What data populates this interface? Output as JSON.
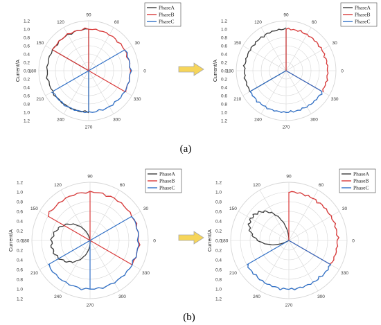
{
  "colors": {
    "PhaseA": "#3a3a3a",
    "PhaseB": "#d93838",
    "PhaseC": "#2f6fc6",
    "arrow_fill": "#f6d55a",
    "arrow_stroke": "#a8a8a8",
    "grid": "#d6d6d6"
  },
  "captions": [
    "(a)",
    "(b)"
  ],
  "chart_data": [
    {
      "type": "polar-line",
      "panel": "a-before",
      "ylabel": "Current/A",
      "angle_ticks": [
        "0",
        "30",
        "60",
        "90",
        "120",
        "150",
        "180",
        "210",
        "240",
        "270",
        "300",
        "330"
      ],
      "radial_ticks": [
        "0.0",
        "0.2",
        "0.4",
        "0.6",
        "0.8",
        "1.0",
        "1.2"
      ],
      "rlim": [
        0,
        1.2
      ],
      "legend": [
        "PhaseA",
        "PhaseB",
        "PhaseC"
      ],
      "legend_position": "top-right",
      "series": [
        {
          "name": "PhaseA",
          "theta_range": [
            90,
            270
          ],
          "r": 1.0,
          "radial_lines_deg": [
            90,
            150,
            270
          ]
        },
        {
          "name": "PhaseB",
          "theta_range": [
            -30,
            150
          ],
          "r": 1.0,
          "radial_lines_deg": [
            -30,
            90,
            150
          ]
        },
        {
          "name": "PhaseC",
          "theta_range": [
            210,
            390
          ],
          "r": 1.0,
          "radial_lines_deg": [
            30,
            210,
            270
          ]
        }
      ]
    },
    {
      "type": "polar-line",
      "panel": "a-after",
      "ylabel": "Current/A",
      "angle_ticks": [
        "0",
        "30",
        "60",
        "90",
        "120",
        "150",
        "180",
        "210",
        "240",
        "270",
        "300",
        "330"
      ],
      "radial_ticks": [
        "0.0",
        "0.2",
        "0.4",
        "0.6",
        "0.8",
        "1.0",
        "1.2"
      ],
      "rlim": [
        0,
        1.2
      ],
      "legend": [
        "PhaseA",
        "PhaseB",
        "PhaseC"
      ],
      "legend_position": "top-right",
      "series": [
        {
          "name": "PhaseA",
          "theta_range": [
            90,
            210
          ],
          "r": 1.0,
          "radial_lines_deg": [
            90,
            210
          ]
        },
        {
          "name": "PhaseB",
          "theta_range": [
            -30,
            90
          ],
          "r": 1.0,
          "radial_lines_deg": [
            90,
            -30
          ]
        },
        {
          "name": "PhaseC",
          "theta_range": [
            210,
            330
          ],
          "r": 1.0,
          "radial_lines_deg": [
            210,
            -30
          ]
        }
      ]
    },
    {
      "type": "polar-line",
      "panel": "b-before",
      "ylabel": "Current/A",
      "angle_ticks": [
        "0",
        "30",
        "60",
        "90",
        "120",
        "150",
        "180",
        "210",
        "240",
        "270",
        "300",
        "330"
      ],
      "radial_ticks": [
        "0.0",
        "0.2",
        "0.4",
        "0.6",
        "0.8",
        "1.0",
        "1.2"
      ],
      "rlim": [
        0,
        1.2
      ],
      "legend": [
        "PhaseA",
        "PhaseB",
        "PhaseC"
      ],
      "legend_position": "top-right",
      "series": [
        {
          "name": "PhaseA",
          "shape": "loop",
          "theta_range": [
            100,
            275
          ],
          "peak_r": 0.8
        },
        {
          "name": "PhaseB",
          "theta_range": [
            -30,
            150
          ],
          "r": 1.0,
          "radial_lines_deg": [
            -30,
            90,
            150
          ]
        },
        {
          "name": "PhaseC",
          "theta_range": [
            210,
            390
          ],
          "r": 1.0,
          "radial_lines_deg": [
            30,
            210,
            270
          ]
        }
      ]
    },
    {
      "type": "polar-line",
      "panel": "b-after",
      "ylabel": "Current/A",
      "angle_ticks": [
        "0",
        "30",
        "60",
        "90",
        "120",
        "150",
        "180",
        "210",
        "240",
        "270",
        "300",
        "330"
      ],
      "radial_ticks": [
        "0.0",
        "0.2",
        "0.4",
        "0.6",
        "0.8",
        "1.0",
        "1.2"
      ],
      "rlim": [
        0,
        1.2
      ],
      "legend": [
        "PhaseA",
        "PhaseB",
        "PhaseC"
      ],
      "legend_position": "top-right",
      "series": [
        {
          "name": "PhaseA",
          "shape": "loop",
          "theta_range": [
            90,
            210
          ],
          "peak_r": 0.9
        },
        {
          "name": "PhaseB",
          "theta_range": [
            -30,
            90
          ],
          "r": 1.0,
          "radial_lines_deg": [
            90,
            -30
          ]
        },
        {
          "name": "PhaseC",
          "theta_range": [
            210,
            330
          ],
          "r": 1.0,
          "radial_lines_deg": [
            210,
            -30
          ]
        }
      ]
    }
  ]
}
